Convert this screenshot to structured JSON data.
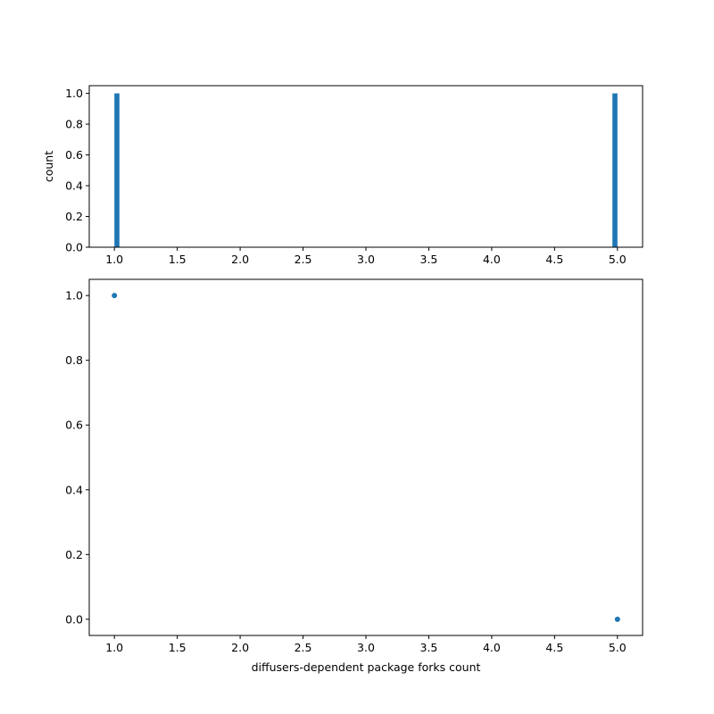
{
  "chart_data": [
    {
      "type": "bar",
      "subtype": "histogram",
      "bins": [
        [
          1.0,
          1.04
        ],
        [
          4.96,
          5.0
        ]
      ],
      "values": [
        1,
        1
      ],
      "xlabel": "",
      "ylabel": "count",
      "xlim": [
        0.8,
        5.2
      ],
      "ylim": [
        0,
        1.05
      ],
      "xticks": [
        1.0,
        1.5,
        2.0,
        2.5,
        3.0,
        3.5,
        4.0,
        4.5,
        5.0
      ],
      "xtick_labels": [
        "1.0",
        "1.5",
        "2.0",
        "2.5",
        "3.0",
        "3.5",
        "4.0",
        "4.5",
        "5.0"
      ],
      "yticks": [
        0.0,
        0.2,
        0.4,
        0.6,
        0.8,
        1.0
      ],
      "ytick_labels": [
        "0.0",
        "0.2",
        "0.4",
        "0.6",
        "0.8",
        "1.0"
      ],
      "color": "#1f77b4",
      "grid": false
    },
    {
      "type": "scatter",
      "x": [
        1.0,
        5.0
      ],
      "y": [
        1.0,
        0.0
      ],
      "xlabel": "diffusers-dependent package forks count",
      "ylabel": "",
      "xlim": [
        0.8,
        5.2
      ],
      "ylim": [
        -0.05,
        1.05
      ],
      "xticks": [
        1.0,
        1.5,
        2.0,
        2.5,
        3.0,
        3.5,
        4.0,
        4.5,
        5.0
      ],
      "xtick_labels": [
        "1.0",
        "1.5",
        "2.0",
        "2.5",
        "3.0",
        "3.5",
        "4.0",
        "4.5",
        "5.0"
      ],
      "yticks": [
        0.0,
        0.2,
        0.4,
        0.6,
        0.8,
        1.0
      ],
      "ytick_labels": [
        "0.0",
        "0.2",
        "0.4",
        "0.6",
        "0.8",
        "1.0"
      ],
      "color": "#1f77b4",
      "grid": false
    }
  ]
}
